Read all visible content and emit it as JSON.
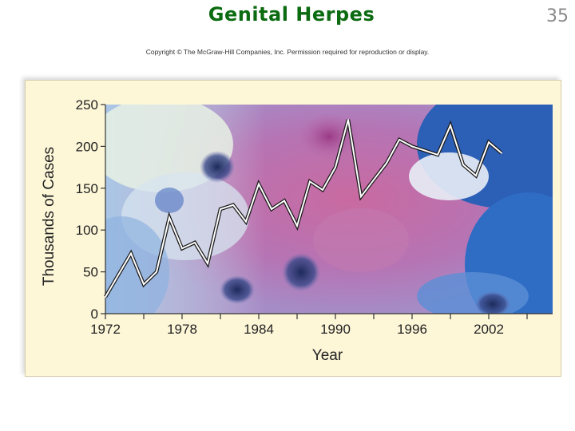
{
  "slide": {
    "title": "Genital Herpes",
    "number": "35",
    "copyright": "Copyright © The McGraw-Hill Companies, Inc. Permission required for reproduction or display."
  },
  "chart_data": {
    "type": "line",
    "title": "",
    "xlabel": "Year",
    "ylabel": "Thousands of Cases",
    "xlim": [
      1972,
      2007
    ],
    "ylim": [
      0,
      250
    ],
    "x_ticks": [
      1972,
      1978,
      1984,
      1990,
      1996,
      2002
    ],
    "y_ticks": [
      0,
      50,
      100,
      150,
      200,
      250
    ],
    "grid": false,
    "legend": "none",
    "line_color": "#ffffff",
    "series": [
      {
        "x": [
          1972,
          1974,
          1975,
          1976,
          1977,
          1978,
          1979,
          1980,
          1981,
          1982,
          1983,
          1984,
          1985,
          1986,
          1987,
          1988,
          1989,
          1990,
          1991,
          1992,
          1993,
          1994,
          1995,
          1996,
          1997,
          1998,
          1999,
          2000,
          2001,
          2002,
          2003
        ],
        "values": [
          20,
          72,
          35,
          50,
          115,
          78,
          85,
          60,
          125,
          130,
          110,
          155,
          125,
          135,
          105,
          158,
          148,
          175,
          232,
          140,
          160,
          180,
          208,
          200,
          195,
          190,
          225,
          178,
          165,
          205,
          192
        ]
      }
    ]
  }
}
